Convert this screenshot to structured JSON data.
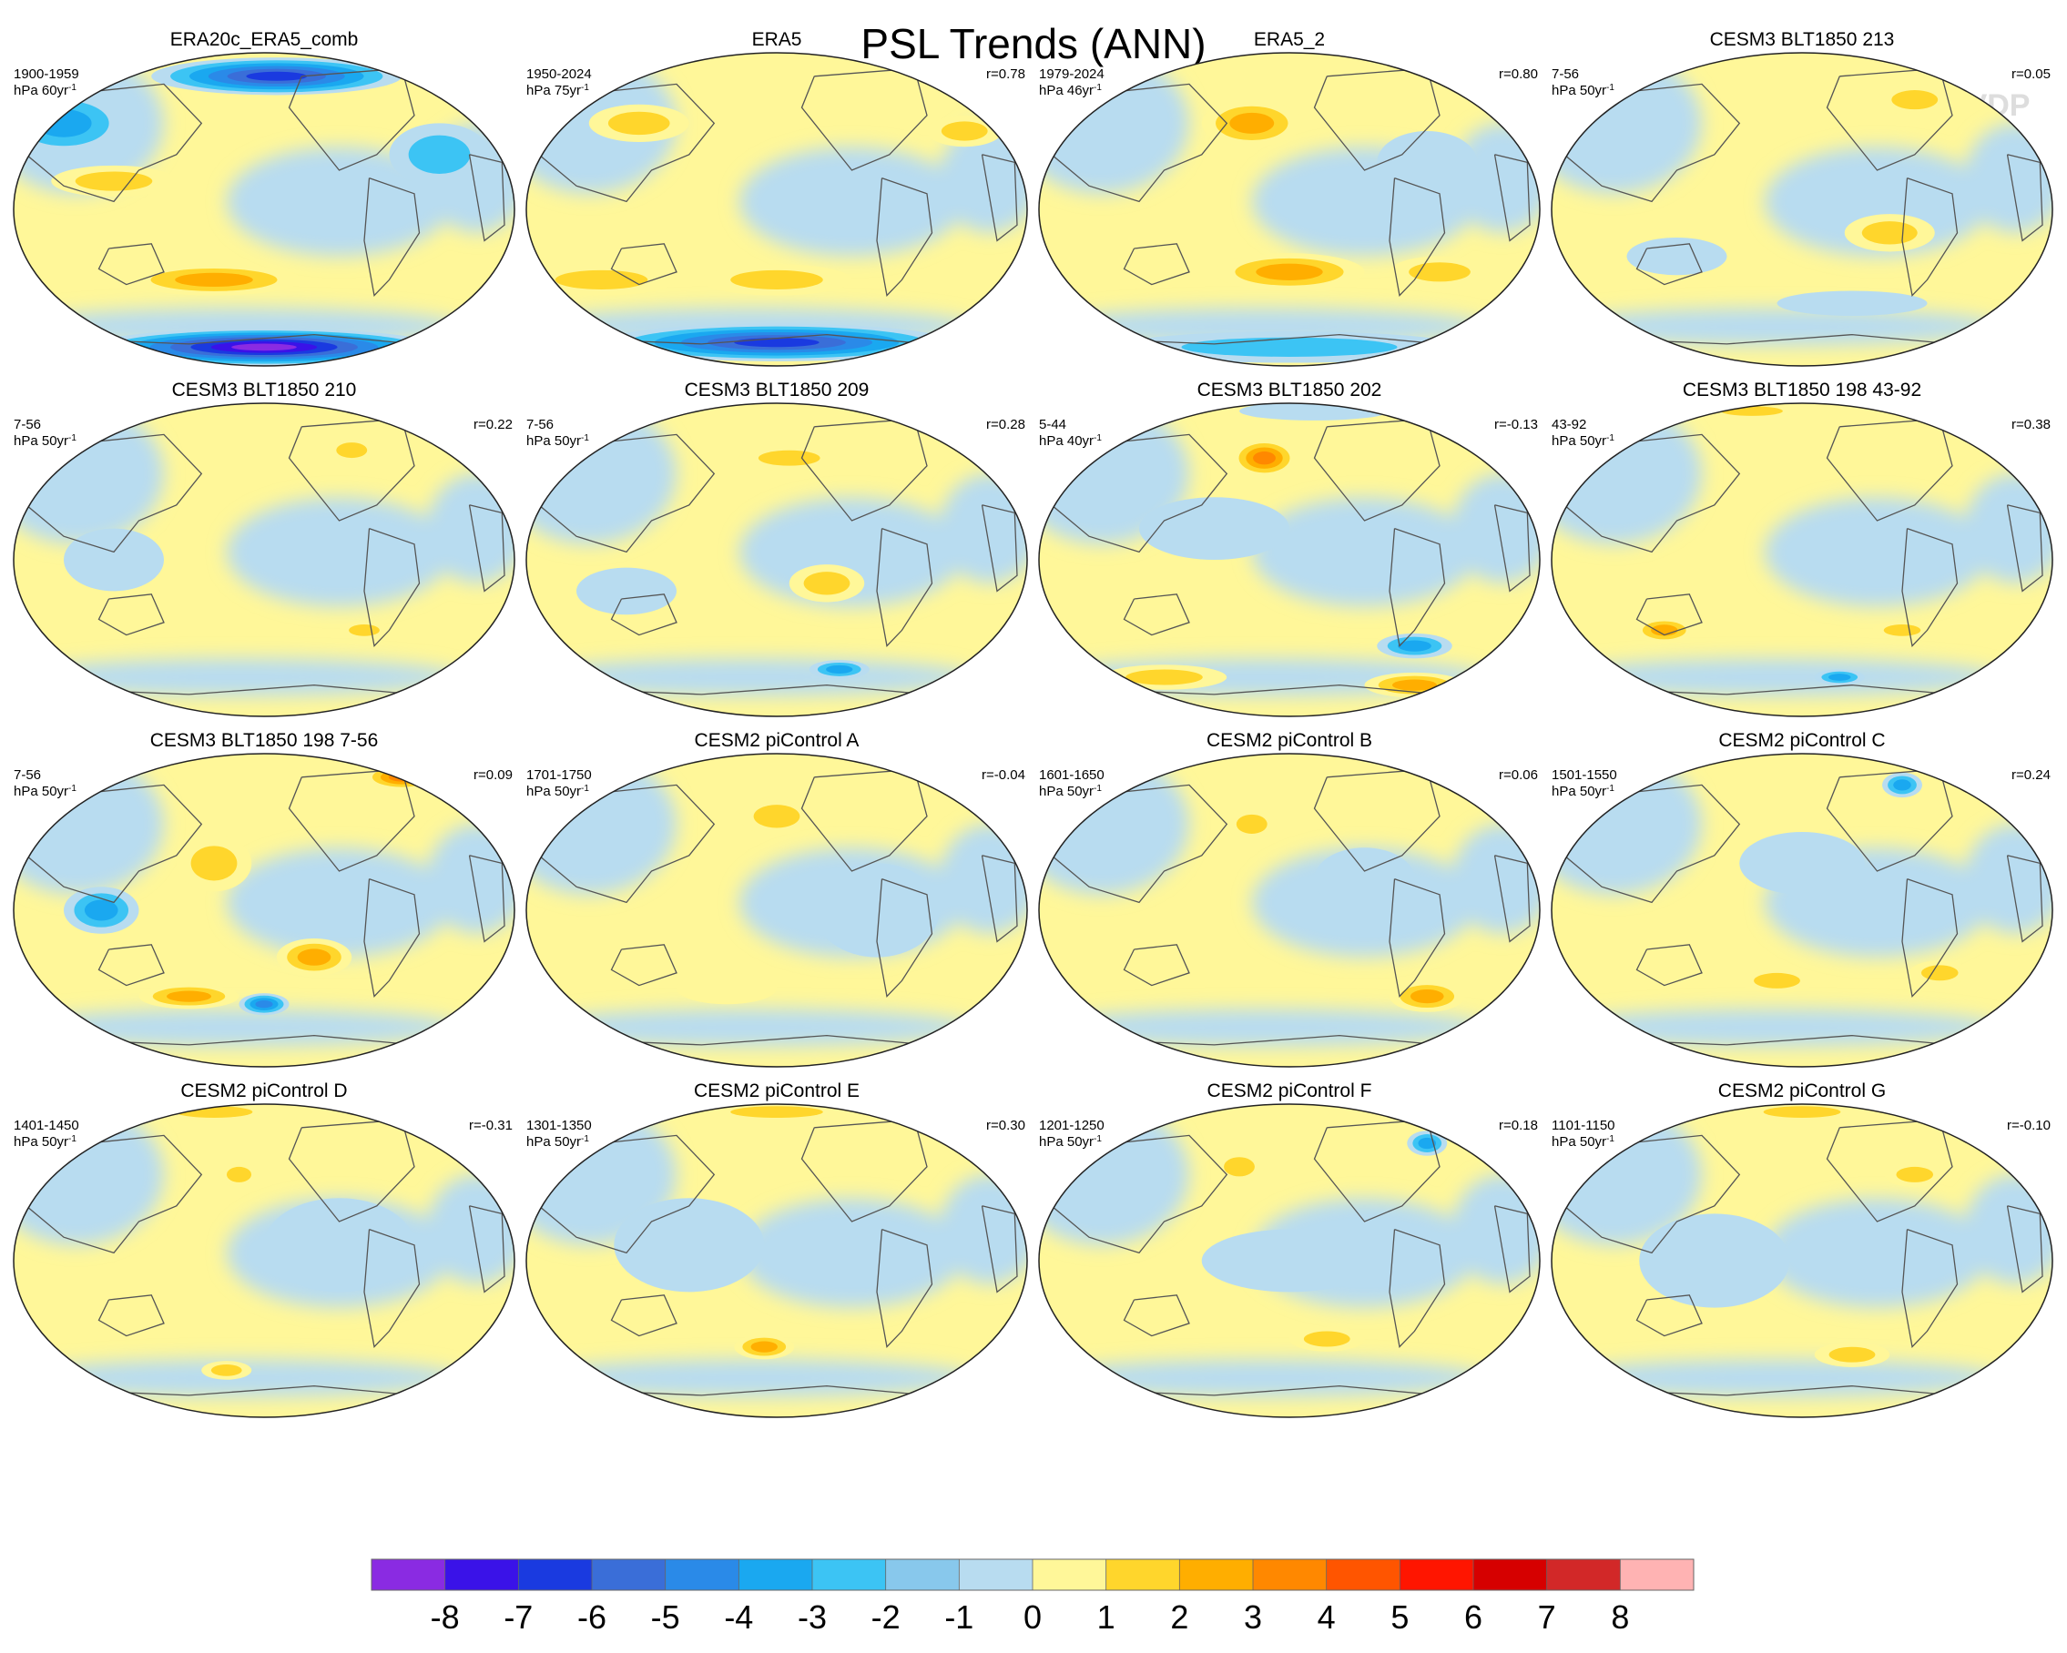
{
  "title": "PSL Trends (ANN)",
  "watermark": "© CVDP",
  "chart_data": {
    "type": "heatmap",
    "title": "PSL Trends (ANN)",
    "projection": "Robinson (global maps)",
    "units_note": "hPa per period (trend)",
    "panels": [
      {
        "name": "ERA20c_ERA5_comb",
        "period": "1900-1959",
        "units": "hPa 60yr",
        "r": "",
        "pattern": "strong",
        "blobs": [
          [
            -0.6,
            0.18,
            0.25,
            0.1,
            2
          ],
          [
            -0.2,
            -0.45,
            0.35,
            0.1,
            3
          ],
          [
            0.05,
            0.85,
            0.5,
            0.12,
            -6
          ],
          [
            0,
            -0.88,
            0.7,
            0.12,
            -8
          ],
          [
            -0.8,
            0.55,
            0.25,
            0.2,
            -3
          ],
          [
            0.7,
            0.35,
            0.2,
            0.2,
            -2
          ]
        ]
      },
      {
        "name": "ERA5",
        "period": "1950-2024",
        "units": "hPa 75yr",
        "r": "r=0.78",
        "pattern": "strong2",
        "blobs": [
          [
            -0.55,
            0.55,
            0.2,
            0.12,
            2
          ],
          [
            -0.7,
            -0.45,
            0.3,
            0.1,
            2
          ],
          [
            0.0,
            -0.45,
            0.3,
            0.1,
            2
          ],
          [
            0,
            -0.85,
            0.7,
            0.12,
            -6
          ],
          [
            0.75,
            0.5,
            0.15,
            0.1,
            2
          ]
        ]
      },
      {
        "name": "ERA5_2",
        "period": "1979-2024",
        "units": "hPa 46yr",
        "r": "r=0.80",
        "pattern": "mixed",
        "blobs": [
          [
            -0.15,
            0.55,
            0.2,
            0.15,
            3
          ],
          [
            0.0,
            -0.4,
            0.3,
            0.12,
            3
          ],
          [
            0.6,
            -0.4,
            0.2,
            0.1,
            2
          ],
          [
            0,
            -0.88,
            0.7,
            0.1,
            -2
          ],
          [
            0.55,
            0.3,
            0.2,
            0.2,
            -1
          ]
        ]
      },
      {
        "name": "CESM3 BLT1850 213",
        "period": "7-56",
        "units": "hPa 50yr",
        "r": "r=0.05",
        "pattern": "weak",
        "blobs": [
          [
            0.35,
            -0.15,
            0.18,
            0.12,
            2
          ],
          [
            0.45,
            0.7,
            0.15,
            0.1,
            2
          ],
          [
            -0.5,
            -0.3,
            0.2,
            0.12,
            -1
          ],
          [
            0.2,
            -0.6,
            0.3,
            0.08,
            -1
          ]
        ]
      },
      {
        "name": "CESM3 BLT1850 210",
        "period": "7-56",
        "units": "hPa 50yr",
        "r": "r=0.22",
        "pattern": "weak",
        "blobs": [
          [
            0.35,
            0.7,
            0.1,
            0.08,
            2
          ],
          [
            0.4,
            -0.45,
            0.1,
            0.06,
            2
          ],
          [
            -0.6,
            0.0,
            0.2,
            0.2,
            -1
          ]
        ]
      },
      {
        "name": "CESM3 BLT1850 209",
        "period": "7-56",
        "units": "hPa 50yr",
        "r": "r=0.28",
        "pattern": "weak",
        "blobs": [
          [
            0.2,
            -0.15,
            0.15,
            0.12,
            2
          ],
          [
            0.05,
            0.65,
            0.2,
            0.08,
            2
          ],
          [
            0.25,
            -0.7,
            0.12,
            0.06,
            -3
          ],
          [
            -0.6,
            -0.2,
            0.2,
            0.15,
            -1
          ]
        ]
      },
      {
        "name": "CESM3 BLT1850 202",
        "period": "5-44",
        "units": "hPa 40yr",
        "r": "r=-0.13",
        "pattern": "mixed",
        "blobs": [
          [
            -0.1,
            0.65,
            0.13,
            0.12,
            4
          ],
          [
            0.5,
            -0.55,
            0.15,
            0.08,
            -3
          ],
          [
            -0.5,
            -0.75,
            0.25,
            0.08,
            2
          ],
          [
            0.5,
            -0.8,
            0.2,
            0.08,
            3
          ],
          [
            -0.3,
            0.2,
            0.3,
            0.2,
            -1
          ],
          [
            0.1,
            0.95,
            0.3,
            0.06,
            -1
          ]
        ]
      },
      {
        "name": "CESM3 BLT1850 198 43-92",
        "period": "43-92",
        "units": "hPa 50yr",
        "r": "r=0.38",
        "pattern": "weak",
        "blobs": [
          [
            -0.55,
            -0.45,
            0.12,
            0.08,
            3
          ],
          [
            0.4,
            -0.45,
            0.12,
            0.06,
            2
          ],
          [
            0.15,
            -0.75,
            0.1,
            0.05,
            -3
          ],
          [
            -0.2,
            0.95,
            0.2,
            0.05,
            2
          ]
        ]
      },
      {
        "name": "CESM3 BLT1850 198 7-56",
        "period": "7-56",
        "units": "hPa 50yr",
        "r": "r=0.09",
        "pattern": "mixed",
        "blobs": [
          [
            0.55,
            0.85,
            0.15,
            0.08,
            4
          ],
          [
            -0.2,
            0.3,
            0.15,
            0.18,
            2
          ],
          [
            0.2,
            -0.3,
            0.15,
            0.12,
            3
          ],
          [
            -0.3,
            -0.55,
            0.2,
            0.08,
            3
          ],
          [
            0.0,
            -0.6,
            0.1,
            0.07,
            -4
          ],
          [
            -0.65,
            0.0,
            0.15,
            0.15,
            -3
          ]
        ]
      },
      {
        "name": "CESM2 piControl A",
        "period": "1701-1750",
        "units": "hPa 50yr",
        "r": "r=-0.04",
        "pattern": "weak",
        "blobs": [
          [
            0.0,
            0.6,
            0.15,
            0.12,
            2
          ],
          [
            -0.2,
            -0.5,
            0.2,
            0.1,
            1
          ],
          [
            0.4,
            0.0,
            0.25,
            0.3,
            -1
          ]
        ]
      },
      {
        "name": "CESM2 piControl B",
        "period": "1601-1650",
        "units": "hPa 50yr",
        "r": "r=0.06",
        "pattern": "weak",
        "blobs": [
          [
            0.55,
            -0.55,
            0.15,
            0.1,
            3
          ],
          [
            -0.15,
            0.55,
            0.1,
            0.1,
            2
          ],
          [
            0.3,
            0.2,
            0.2,
            0.2,
            -1
          ]
        ]
      },
      {
        "name": "CESM2 piControl C",
        "period": "1501-1550",
        "units": "hPa 50yr",
        "r": "r=0.24",
        "pattern": "weak",
        "blobs": [
          [
            0.4,
            0.8,
            0.08,
            0.08,
            -3
          ],
          [
            -0.1,
            -0.45,
            0.15,
            0.08,
            2
          ],
          [
            0.55,
            -0.4,
            0.12,
            0.08,
            2
          ],
          [
            0.0,
            0.3,
            0.25,
            0.2,
            -1
          ]
        ]
      },
      {
        "name": "CESM2 piControl D",
        "period": "1401-1450",
        "units": "hPa 50yr",
        "r": "r=-0.31",
        "pattern": "weak",
        "blobs": [
          [
            -0.2,
            0.95,
            0.25,
            0.06,
            2
          ],
          [
            -0.1,
            0.55,
            0.08,
            0.08,
            2
          ],
          [
            -0.15,
            -0.7,
            0.1,
            0.06,
            2
          ],
          [
            0.3,
            0.1,
            0.3,
            0.3,
            -1
          ]
        ]
      },
      {
        "name": "CESM2 piControl E",
        "period": "1301-1350",
        "units": "hPa 50yr",
        "r": "r=0.30",
        "pattern": "weak",
        "blobs": [
          [
            -0.05,
            -0.55,
            0.12,
            0.08,
            3
          ],
          [
            0.0,
            0.95,
            0.3,
            0.06,
            2
          ],
          [
            -0.35,
            0.1,
            0.3,
            0.3,
            -1
          ]
        ]
      },
      {
        "name": "CESM2 piControl F",
        "period": "1201-1250",
        "units": "hPa 50yr",
        "r": "r=0.18",
        "pattern": "weak",
        "blobs": [
          [
            0.55,
            0.75,
            0.08,
            0.08,
            -3
          ],
          [
            0.15,
            -0.5,
            0.15,
            0.08,
            2
          ],
          [
            -0.2,
            0.6,
            0.1,
            0.1,
            2
          ],
          [
            0.0,
            0.0,
            0.35,
            0.2,
            -1
          ]
        ]
      },
      {
        "name": "CESM2 piControl G",
        "period": "1101-1150",
        "units": "hPa 50yr",
        "r": "r=-0.10",
        "pattern": "weak",
        "blobs": [
          [
            0.45,
            0.55,
            0.12,
            0.08,
            2
          ],
          [
            0.2,
            -0.6,
            0.15,
            0.08,
            2
          ],
          [
            -0.35,
            0.0,
            0.3,
            0.3,
            -1
          ],
          [
            0.0,
            0.95,
            0.25,
            0.06,
            2
          ]
        ]
      }
    ],
    "colorbar": {
      "labels": [
        "-8",
        "-7",
        "-6",
        "-5",
        "-4",
        "-3",
        "-2",
        "-1",
        "0",
        "1",
        "2",
        "3",
        "4",
        "5",
        "6",
        "7",
        "8"
      ],
      "colors": [
        "#8a2be2",
        "#3a12e8",
        "#1a3ae0",
        "#3a6ed8",
        "#2a8ae8",
        "#1aa8f0",
        "#3cc4f4",
        "#88c8ec",
        "#b8dcf0",
        "#fff799",
        "#ffd62c",
        "#ffae00",
        "#ff8800",
        "#ff5500",
        "#ff1500",
        "#d60000",
        "#d22828",
        "#ffb3b3"
      ]
    }
  }
}
